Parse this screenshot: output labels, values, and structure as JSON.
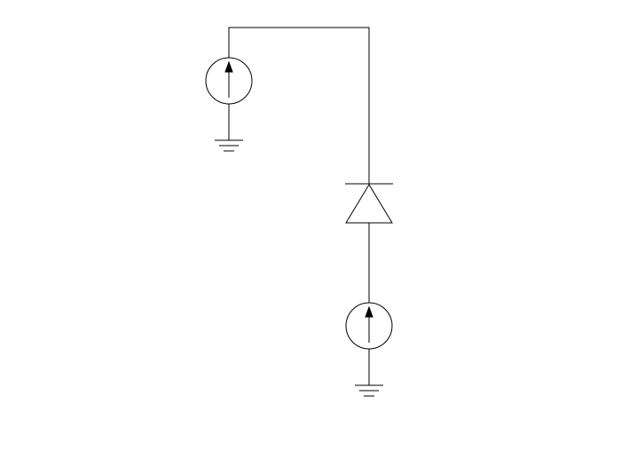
{
  "diagram": {
    "type": "circuit-schematic",
    "background": "#ffffff",
    "stroke_color": "#000000",
    "components": [
      {
        "kind": "current-source",
        "name": "current-source-top",
        "direction": "up"
      },
      {
        "kind": "ground",
        "name": "ground-top"
      },
      {
        "kind": "diode",
        "name": "diode",
        "orientation": "anode-down-cathode-up"
      },
      {
        "kind": "current-source",
        "name": "current-source-bottom",
        "direction": "up"
      },
      {
        "kind": "ground",
        "name": "ground-bottom"
      }
    ],
    "connections": [
      [
        "current-source-top",
        "diode"
      ],
      [
        "diode",
        "current-source-bottom"
      ],
      [
        "current-source-top",
        "ground-top"
      ],
      [
        "current-source-bottom",
        "ground-bottom"
      ]
    ]
  }
}
